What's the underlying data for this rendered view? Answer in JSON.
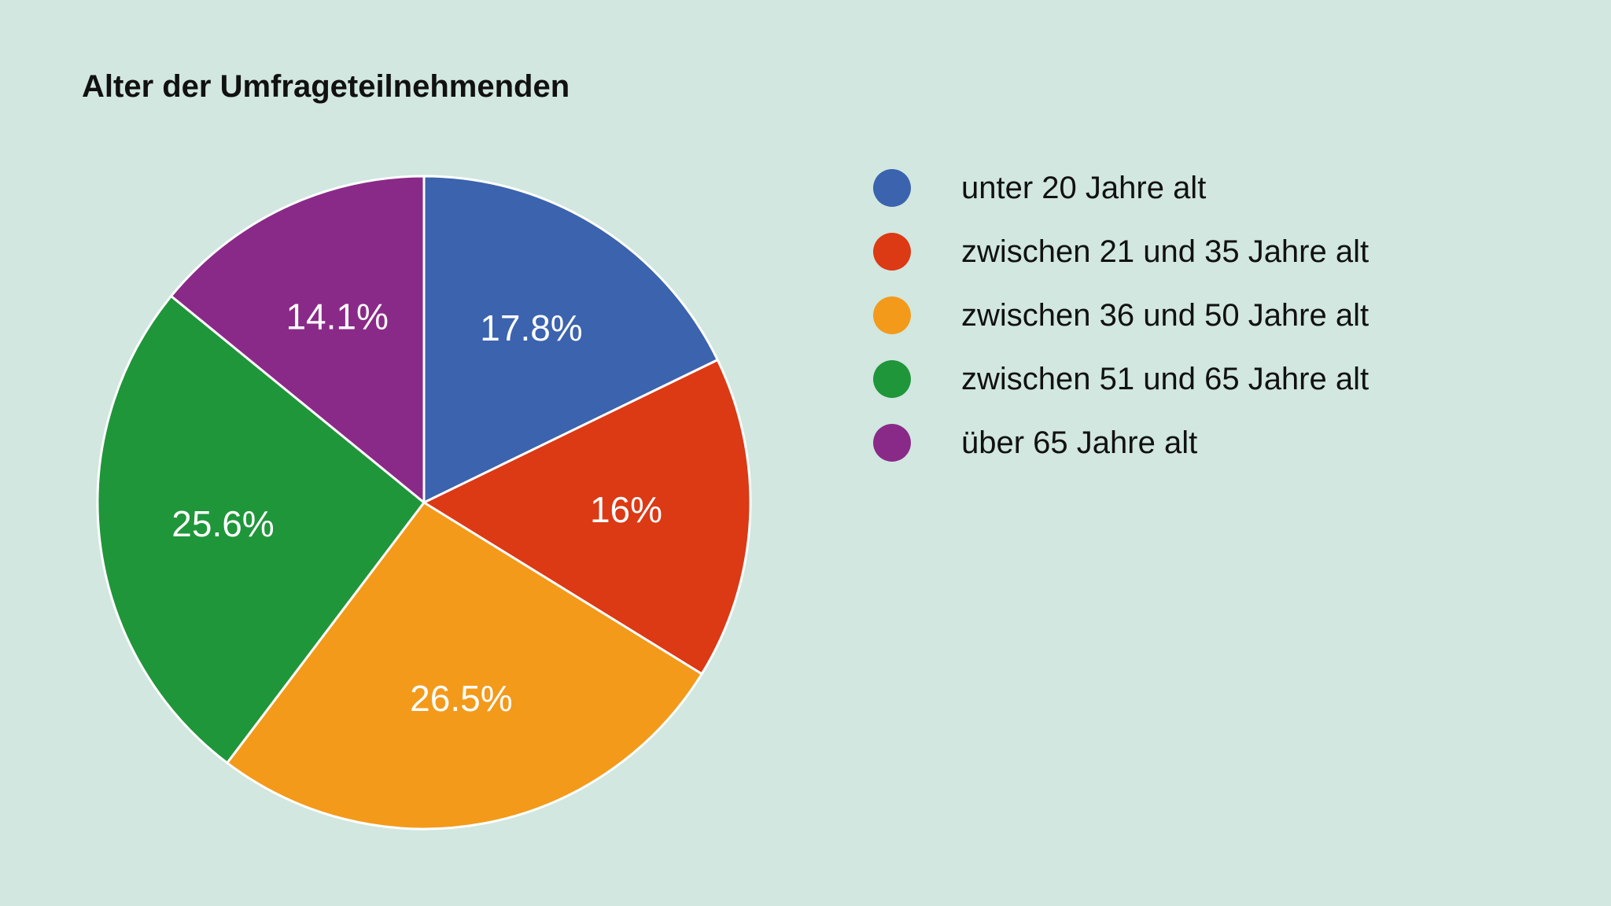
{
  "chart_data": {
    "type": "pie",
    "title": "Alter der Umfrageteilnehmenden",
    "legend_position": "right",
    "slices": [
      {
        "label": "unter 20 Jahre alt",
        "value": 17.8,
        "display": "17.8%",
        "color": "#3b63ae"
      },
      {
        "label": "zwischen 21 und 35 Jahre alt",
        "value": 16.0,
        "display": "16%",
        "color": "#dc3915"
      },
      {
        "label": "zwischen 36 und 50 Jahre alt",
        "value": 26.5,
        "display": "26.5%",
        "color": "#f39a1b"
      },
      {
        "label": "zwischen 51 und 65 Jahre alt",
        "value": 25.6,
        "display": "25.6%",
        "color": "#1f963a"
      },
      {
        "label": "über 65 Jahre alt",
        "value": 14.1,
        "display": "14.1%",
        "color": "#8a2a88"
      }
    ]
  }
}
